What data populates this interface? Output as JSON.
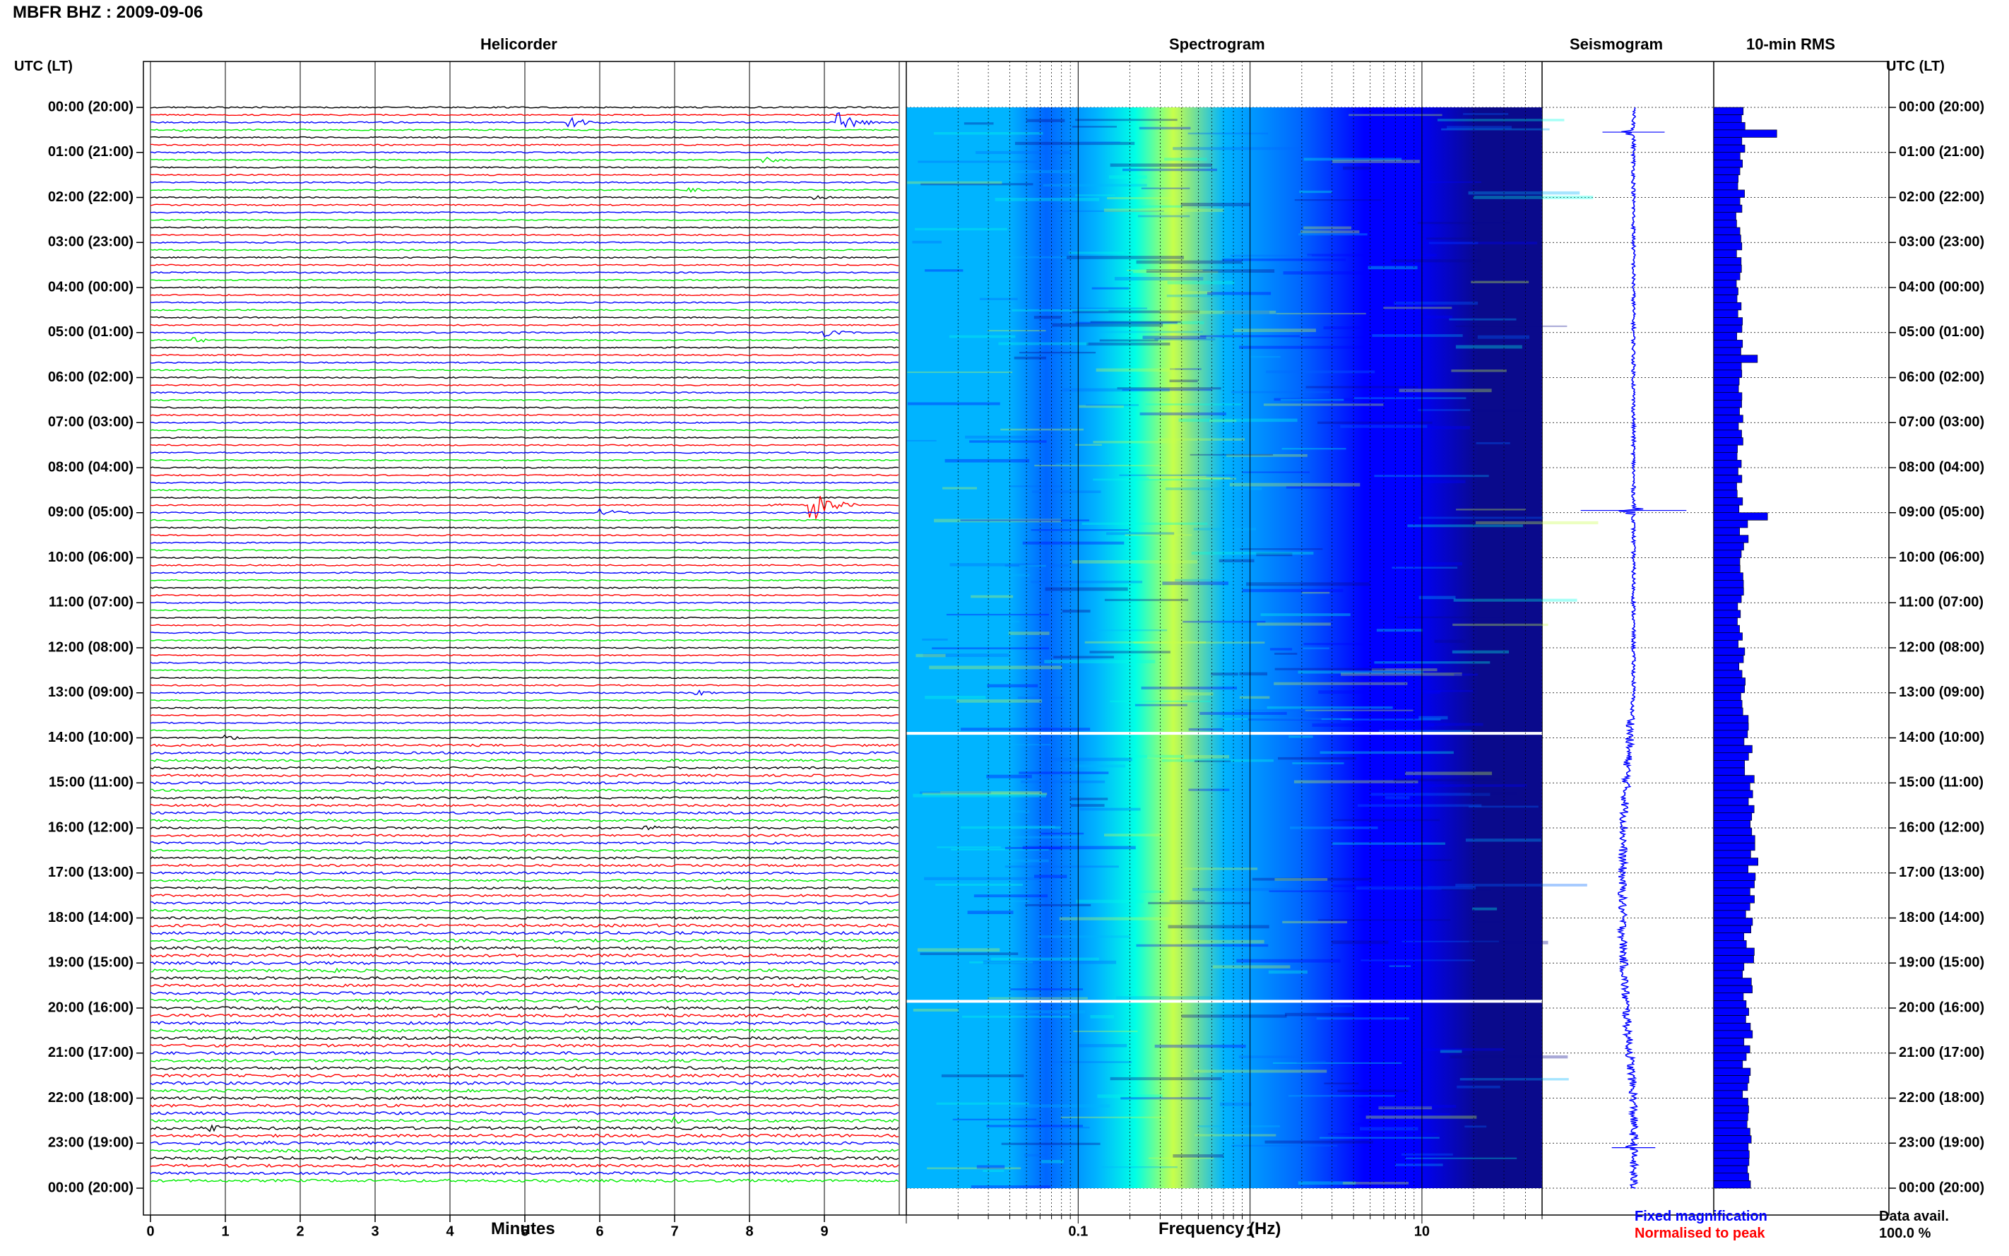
{
  "header": {
    "station_title": "MBFR BHZ : 2009-09-06"
  },
  "footer": {
    "fixed_magnification": "Fixed magnification",
    "normalised_to_peak": "Normalised to peak",
    "data_avail_label": "Data avail.",
    "data_avail_value": "100.0 %"
  },
  "colors": {
    "trace_cycle": [
      "#000000",
      "#ff0000",
      "#0000ff",
      "#00ee00"
    ],
    "seismogram": "#0000ff",
    "rms_bar": "#0000ff",
    "fixed_magnification": "#0000ff",
    "normalised_to_peak": "#ff0000"
  },
  "chart_data": [
    {
      "type": "line",
      "title": "Helicorder",
      "xlabel": "Minutes",
      "ylabel": "UTC (LT)",
      "x_ticks": [
        "0",
        "1",
        "2",
        "3",
        "4",
        "5",
        "6",
        "7",
        "8",
        "9"
      ],
      "xlim": [
        0,
        10
      ],
      "y_ticks": [
        "00:00 (20:00)",
        "01:00 (21:00)",
        "02:00 (22:00)",
        "03:00 (23:00)",
        "04:00 (00:00)",
        "05:00 (01:00)",
        "06:00 (02:00)",
        "07:00 (03:00)",
        "08:00 (04:00)",
        "09:00 (05:00)",
        "10:00 (06:00)",
        "11:00 (07:00)",
        "12:00 (08:00)",
        "13:00 (09:00)",
        "14:00 (10:00)",
        "15:00 (11:00)",
        "16:00 (12:00)",
        "17:00 (13:00)",
        "18:00 (14:00)",
        "19:00 (15:00)",
        "20:00 (16:00)",
        "21:00 (17:00)",
        "22:00 (18:00)",
        "23:00 (19:00)",
        "00:00 (20:00)"
      ],
      "lines_per_hour": 6,
      "line_minutes": 10,
      "events": [
        {
          "hour": 0,
          "line": 2,
          "minute": 5.6,
          "amp": 10
        },
        {
          "hour": 0,
          "line": 2,
          "minute": 9.2,
          "amp": 14
        },
        {
          "hour": 0,
          "line": 3,
          "minute": 0.4,
          "amp": 3
        },
        {
          "hour": 1,
          "line": 1,
          "minute": 8.2,
          "amp": 5
        },
        {
          "hour": 1,
          "line": 5,
          "minute": 7.2,
          "amp": 3
        },
        {
          "hour": 2,
          "line": 0,
          "minute": 8.9,
          "amp": 3
        },
        {
          "hour": 5,
          "line": 0,
          "minute": 9.0,
          "amp": 6
        },
        {
          "hour": 5,
          "line": 1,
          "minute": 0.6,
          "amp": 4
        },
        {
          "hour": 8,
          "line": 5,
          "minute": 8.85,
          "amp": 22
        },
        {
          "hour": 8,
          "line": 5,
          "minute": 8.3,
          "amp": 4
        },
        {
          "hour": 9,
          "line": 0,
          "minute": 6.05,
          "amp": 6
        },
        {
          "hour": 13,
          "line": 0,
          "minute": 7.3,
          "amp": 4
        },
        {
          "hour": 14,
          "line": 0,
          "minute": 1.0,
          "amp": 4
        },
        {
          "hour": 16,
          "line": 0,
          "minute": 6.6,
          "amp": 5
        },
        {
          "hour": 19,
          "line": 1,
          "minute": 2.5,
          "amp": 4
        },
        {
          "hour": 20,
          "line": 0,
          "minute": 1.0,
          "amp": 4
        },
        {
          "hour": 21,
          "line": 5,
          "minute": 8.0,
          "amp": 4
        },
        {
          "hour": 22,
          "line": 3,
          "minute": 7.0,
          "amp": 5
        },
        {
          "hour": 22,
          "line": 4,
          "minute": 0.8,
          "amp": 7
        },
        {
          "hour": 23,
          "line": 0,
          "minute": 1.5,
          "amp": 4
        }
      ]
    },
    {
      "type": "heatmap",
      "title": "Spectrogram",
      "xlabel": "Frequency (Hz)",
      "x_scale": "log",
      "xlim": [
        0.01,
        50
      ],
      "x_ticks": [
        {
          "label": "0.1",
          "value": 0.1
        },
        {
          "label": "1",
          "value": 1
        },
        {
          "label": "10",
          "value": 10
        }
      ],
      "colormap": [
        "#0a0a8c",
        "#0000ff",
        "#0066ff",
        "#00b4ff",
        "#00ffe6",
        "#c8ff4b"
      ],
      "energy_peak_hz": 0.3,
      "gaps_utc_hours": [
        13.9,
        19.85
      ]
    },
    {
      "type": "line",
      "title": "Seismogram",
      "spikes": [
        {
          "hour": 0.55,
          "amp": 20
        },
        {
          "hour": 8.95,
          "amp": 34
        },
        {
          "hour": 23.1,
          "amp": 14
        }
      ]
    },
    {
      "type": "bar",
      "title": "10-min RMS",
      "ylabel": "UTC (LT)",
      "y_ticks": [
        "00:00 (20:00)",
        "01:00 (21:00)",
        "02:00 (22:00)",
        "03:00 (23:00)",
        "04:00 (00:00)",
        "05:00 (01:00)",
        "06:00 (02:00)",
        "07:00 (03:00)",
        "08:00 (04:00)",
        "09:00 (05:00)",
        "10:00 (06:00)",
        "11:00 (07:00)",
        "12:00 (08:00)",
        "13:00 (09:00)",
        "14:00 (10:00)",
        "15:00 (11:00)",
        "16:00 (12:00)",
        "17:00 (13:00)",
        "18:00 (14:00)",
        "19:00 (15:00)",
        "20:00 (16:00)",
        "21:00 (17:00)",
        "22:00 (18:00)",
        "23:00 (19:00)",
        "00:00 (20:00)"
      ],
      "hourly_rms": [
        0.38,
        0.32,
        0.3,
        0.3,
        0.3,
        0.32,
        0.33,
        0.32,
        0.32,
        0.36,
        0.33,
        0.33,
        0.35,
        0.37,
        0.42,
        0.44,
        0.46,
        0.44,
        0.42,
        0.4,
        0.42,
        0.4,
        0.4,
        0.46
      ],
      "peaks": [
        {
          "hour": 0.45,
          "value": 0.75
        },
        {
          "hour": 5.45,
          "value": 0.52
        },
        {
          "hour": 8.95,
          "value": 0.64
        }
      ]
    }
  ]
}
